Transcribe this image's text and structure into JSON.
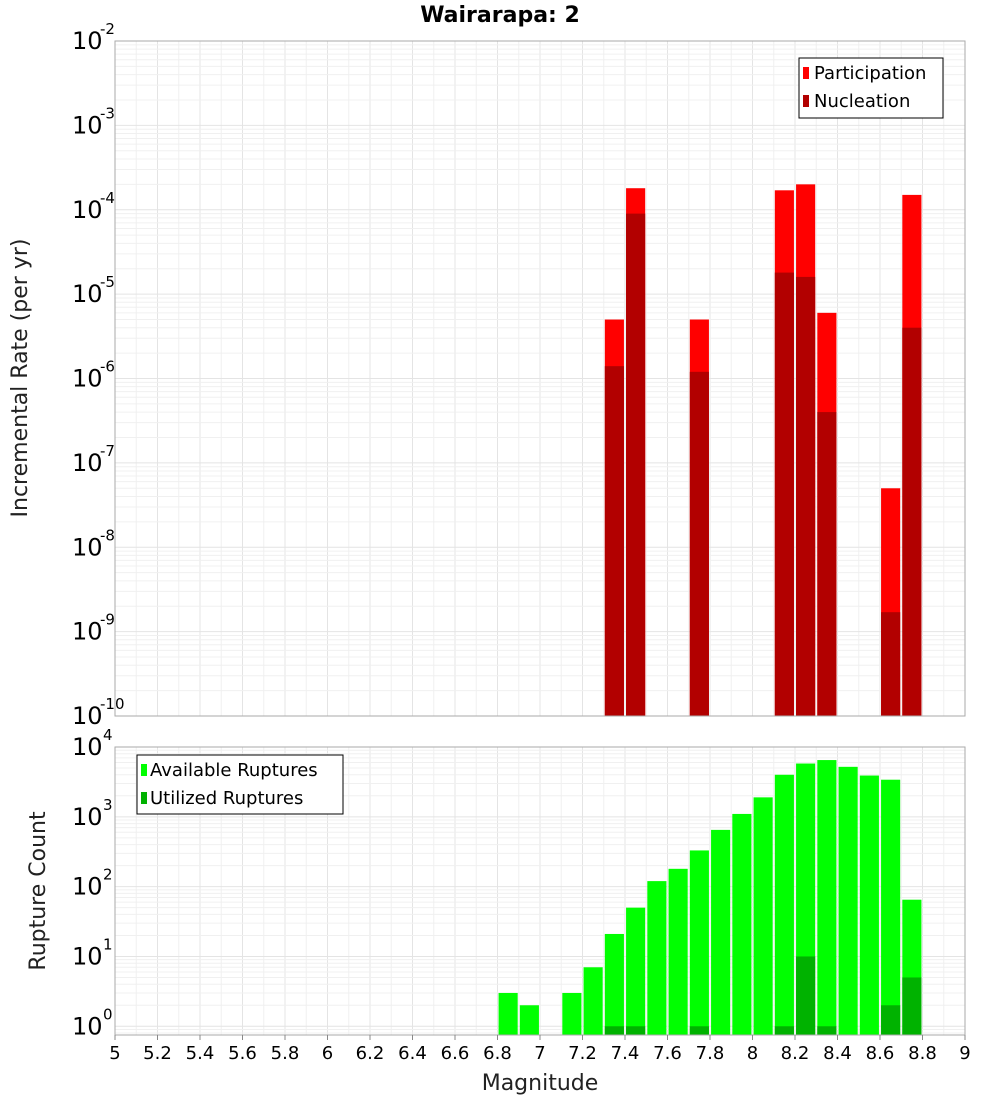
{
  "chart_data": [
    {
      "type": "bar",
      "title": "Wairarapa: 2",
      "xlabel": "",
      "ylabel": "Incremental Rate (per yr)",
      "yscale": "log",
      "ylim": [
        1e-10,
        0.01
      ],
      "xlim": [
        5,
        9
      ],
      "grid": true,
      "legend_placement": "top-right",
      "x": [
        7.35,
        7.45,
        7.75,
        8.15,
        8.25,
        8.35,
        8.65,
        8.75
      ],
      "series": [
        {
          "name": "Participation",
          "color": "#ff0000",
          "values": [
            5e-06,
            0.00018,
            5e-06,
            0.00017,
            0.0002,
            6e-06,
            5e-08,
            0.00015
          ]
        },
        {
          "name": "Nucleation",
          "color": "#b20000",
          "values": [
            1.4e-06,
            9e-05,
            1.2e-06,
            1.8e-05,
            1.6e-05,
            4e-07,
            1.7e-09,
            4e-06
          ]
        }
      ],
      "y_ticks": [
        {
          "base": "10",
          "exp": "-10"
        },
        {
          "base": "10",
          "exp": "-9"
        },
        {
          "base": "10",
          "exp": "-8"
        },
        {
          "base": "10",
          "exp": "-7"
        },
        {
          "base": "10",
          "exp": "-6"
        },
        {
          "base": "10",
          "exp": "-5"
        },
        {
          "base": "10",
          "exp": "-4"
        },
        {
          "base": "10",
          "exp": "-3"
        },
        {
          "base": "10",
          "exp": "-2"
        }
      ]
    },
    {
      "type": "bar",
      "title": "",
      "xlabel": "Magnitude",
      "ylabel": "Rupture Count",
      "yscale": "log",
      "ylim": [
        0.75,
        10000
      ],
      "xlim": [
        5,
        9
      ],
      "grid": true,
      "legend_placement": "top-left",
      "x": [
        6.85,
        6.95,
        7.15,
        7.25,
        7.35,
        7.45,
        7.55,
        7.65,
        7.75,
        7.85,
        7.95,
        8.05,
        8.15,
        8.25,
        8.35,
        8.45,
        8.55,
        8.65,
        8.75
      ],
      "series": [
        {
          "name": "Available Ruptures",
          "color": "#00ff00",
          "values": [
            3,
            2,
            3,
            7,
            21,
            50,
            120,
            180,
            330,
            650,
            1100,
            1900,
            4000,
            5800,
            6500,
            5200,
            3900,
            3400,
            65
          ]
        },
        {
          "name": "Utilized Ruptures",
          "color": "#00b200",
          "values": [
            0,
            0,
            0,
            0,
            1,
            1,
            0,
            0,
            1,
            0,
            0,
            0,
            1,
            10,
            1,
            0,
            0,
            2,
            5
          ]
        }
      ],
      "x_ticks": [
        "5",
        "5.2",
        "5.4",
        "5.6",
        "5.8",
        "6",
        "6.2",
        "6.4",
        "6.6",
        "6.8",
        "7",
        "7.2",
        "7.4",
        "7.6",
        "7.8",
        "8",
        "8.2",
        "8.4",
        "8.6",
        "8.8",
        "9"
      ],
      "y_ticks": [
        {
          "base": "10",
          "exp": "0"
        },
        {
          "base": "10",
          "exp": "1"
        },
        {
          "base": "10",
          "exp": "2"
        },
        {
          "base": "10",
          "exp": "3"
        },
        {
          "base": "10",
          "exp": "4"
        }
      ]
    }
  ]
}
